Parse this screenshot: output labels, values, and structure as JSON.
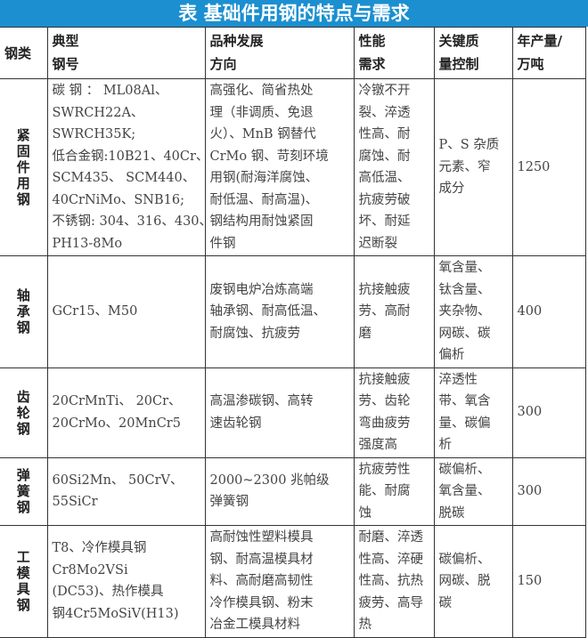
{
  "title": "表  基础件用钢的特点与需求",
  "headers": [
    [
      "钢类"
    ],
    [
      "典型",
      "钢号"
    ],
    [
      "品种发展",
      "方向"
    ],
    [
      "性能",
      "需求"
    ],
    [
      "关键质",
      "量控制"
    ],
    [
      "年产量/",
      "万吨"
    ]
  ],
  "rows": [
    {
      "category": "紧固件用钢",
      "grades": [
        "碳 钢 ： ML08Al、",
        "SWRCH22A、",
        "SWRCH35K;",
        "低合金钢:10B21、40Cr、",
        "SCM435、 SCM440、",
        "40CrNiMo、SNB16;",
        "不锈钢: 304、316、430、",
        "PH13-8Mo"
      ],
      "direction": [
        "高强化、简省热处",
        "理（非调质、免退",
        "火）、MnB 钢替代",
        "CrMo 钢、苛刻环境",
        "用钢(耐海洋腐蚀、",
        "耐低温、耐高温)、",
        "钢结构用耐蚀紧固",
        "件钢"
      ],
      "performance": [
        "冷镦不开",
        "裂、淬透",
        "性高、耐",
        "腐蚀、耐",
        "高低温、",
        "抗疲劳破",
        "坏、耐延",
        "迟断裂"
      ],
      "quality": [
        "P、S 杂质",
        "元素、窄",
        "成分"
      ],
      "output": "1250"
    },
    {
      "category": "轴承钢",
      "grades": [
        "GCr15、M50"
      ],
      "direction": [
        "废钢电炉冶炼高端",
        "轴承钢、耐高低温、",
        "耐腐蚀、抗疲劳"
      ],
      "performance": [
        "抗接触疲",
        "劳、高耐",
        "磨"
      ],
      "quality": [
        "氧含量、",
        "钛含量、",
        "夹杂物、",
        "网碳、碳",
        "偏析"
      ],
      "output": "400"
    },
    {
      "category": "齿轮钢",
      "grades": [
        "20CrMnTi、    20Cr、",
        "20CrMo、20MnCr5"
      ],
      "direction": [
        "高温渗碳钢、高转",
        "速齿轮钢"
      ],
      "performance": [
        "抗接触疲",
        "劳、齿轮",
        "弯曲疲劳",
        "强度高"
      ],
      "quality": [
        "淬透性",
        "带、氧含",
        "量、碳偏",
        "析"
      ],
      "output": "300"
    },
    {
      "category": "弹簧钢",
      "grades": [
        "60Si2Mn、    50CrV、",
        "55SiCr"
      ],
      "direction": [
        "2000~2300 兆帕级",
        "弹簧钢"
      ],
      "performance": [
        "抗疲劳性",
        "能、耐腐",
        "蚀"
      ],
      "quality": [
        "碳偏析、",
        "氧含量、",
        "脱碳"
      ],
      "output": "300"
    },
    {
      "category": "工模具钢",
      "grades": [
        "T8、冷作模具钢",
        "Cr8Mo2VSi",
        "(DC53)、热作模具",
        "钢4Cr5MoSiV(H13)"
      ],
      "direction": [
        "高耐蚀性塑料模具",
        "钢、耐高温模具材",
        "料、高耐磨高韧性",
        "冷作模具钢、粉末",
        "冶金工模具材料"
      ],
      "performance": [
        "耐磨、淬透",
        "性高、淬硬",
        "性高、抗热",
        "疲劳、高导",
        "热"
      ],
      "quality": [
        "碳偏析、",
        "网碳、脱",
        "碳"
      ],
      "output": "150"
    }
  ]
}
